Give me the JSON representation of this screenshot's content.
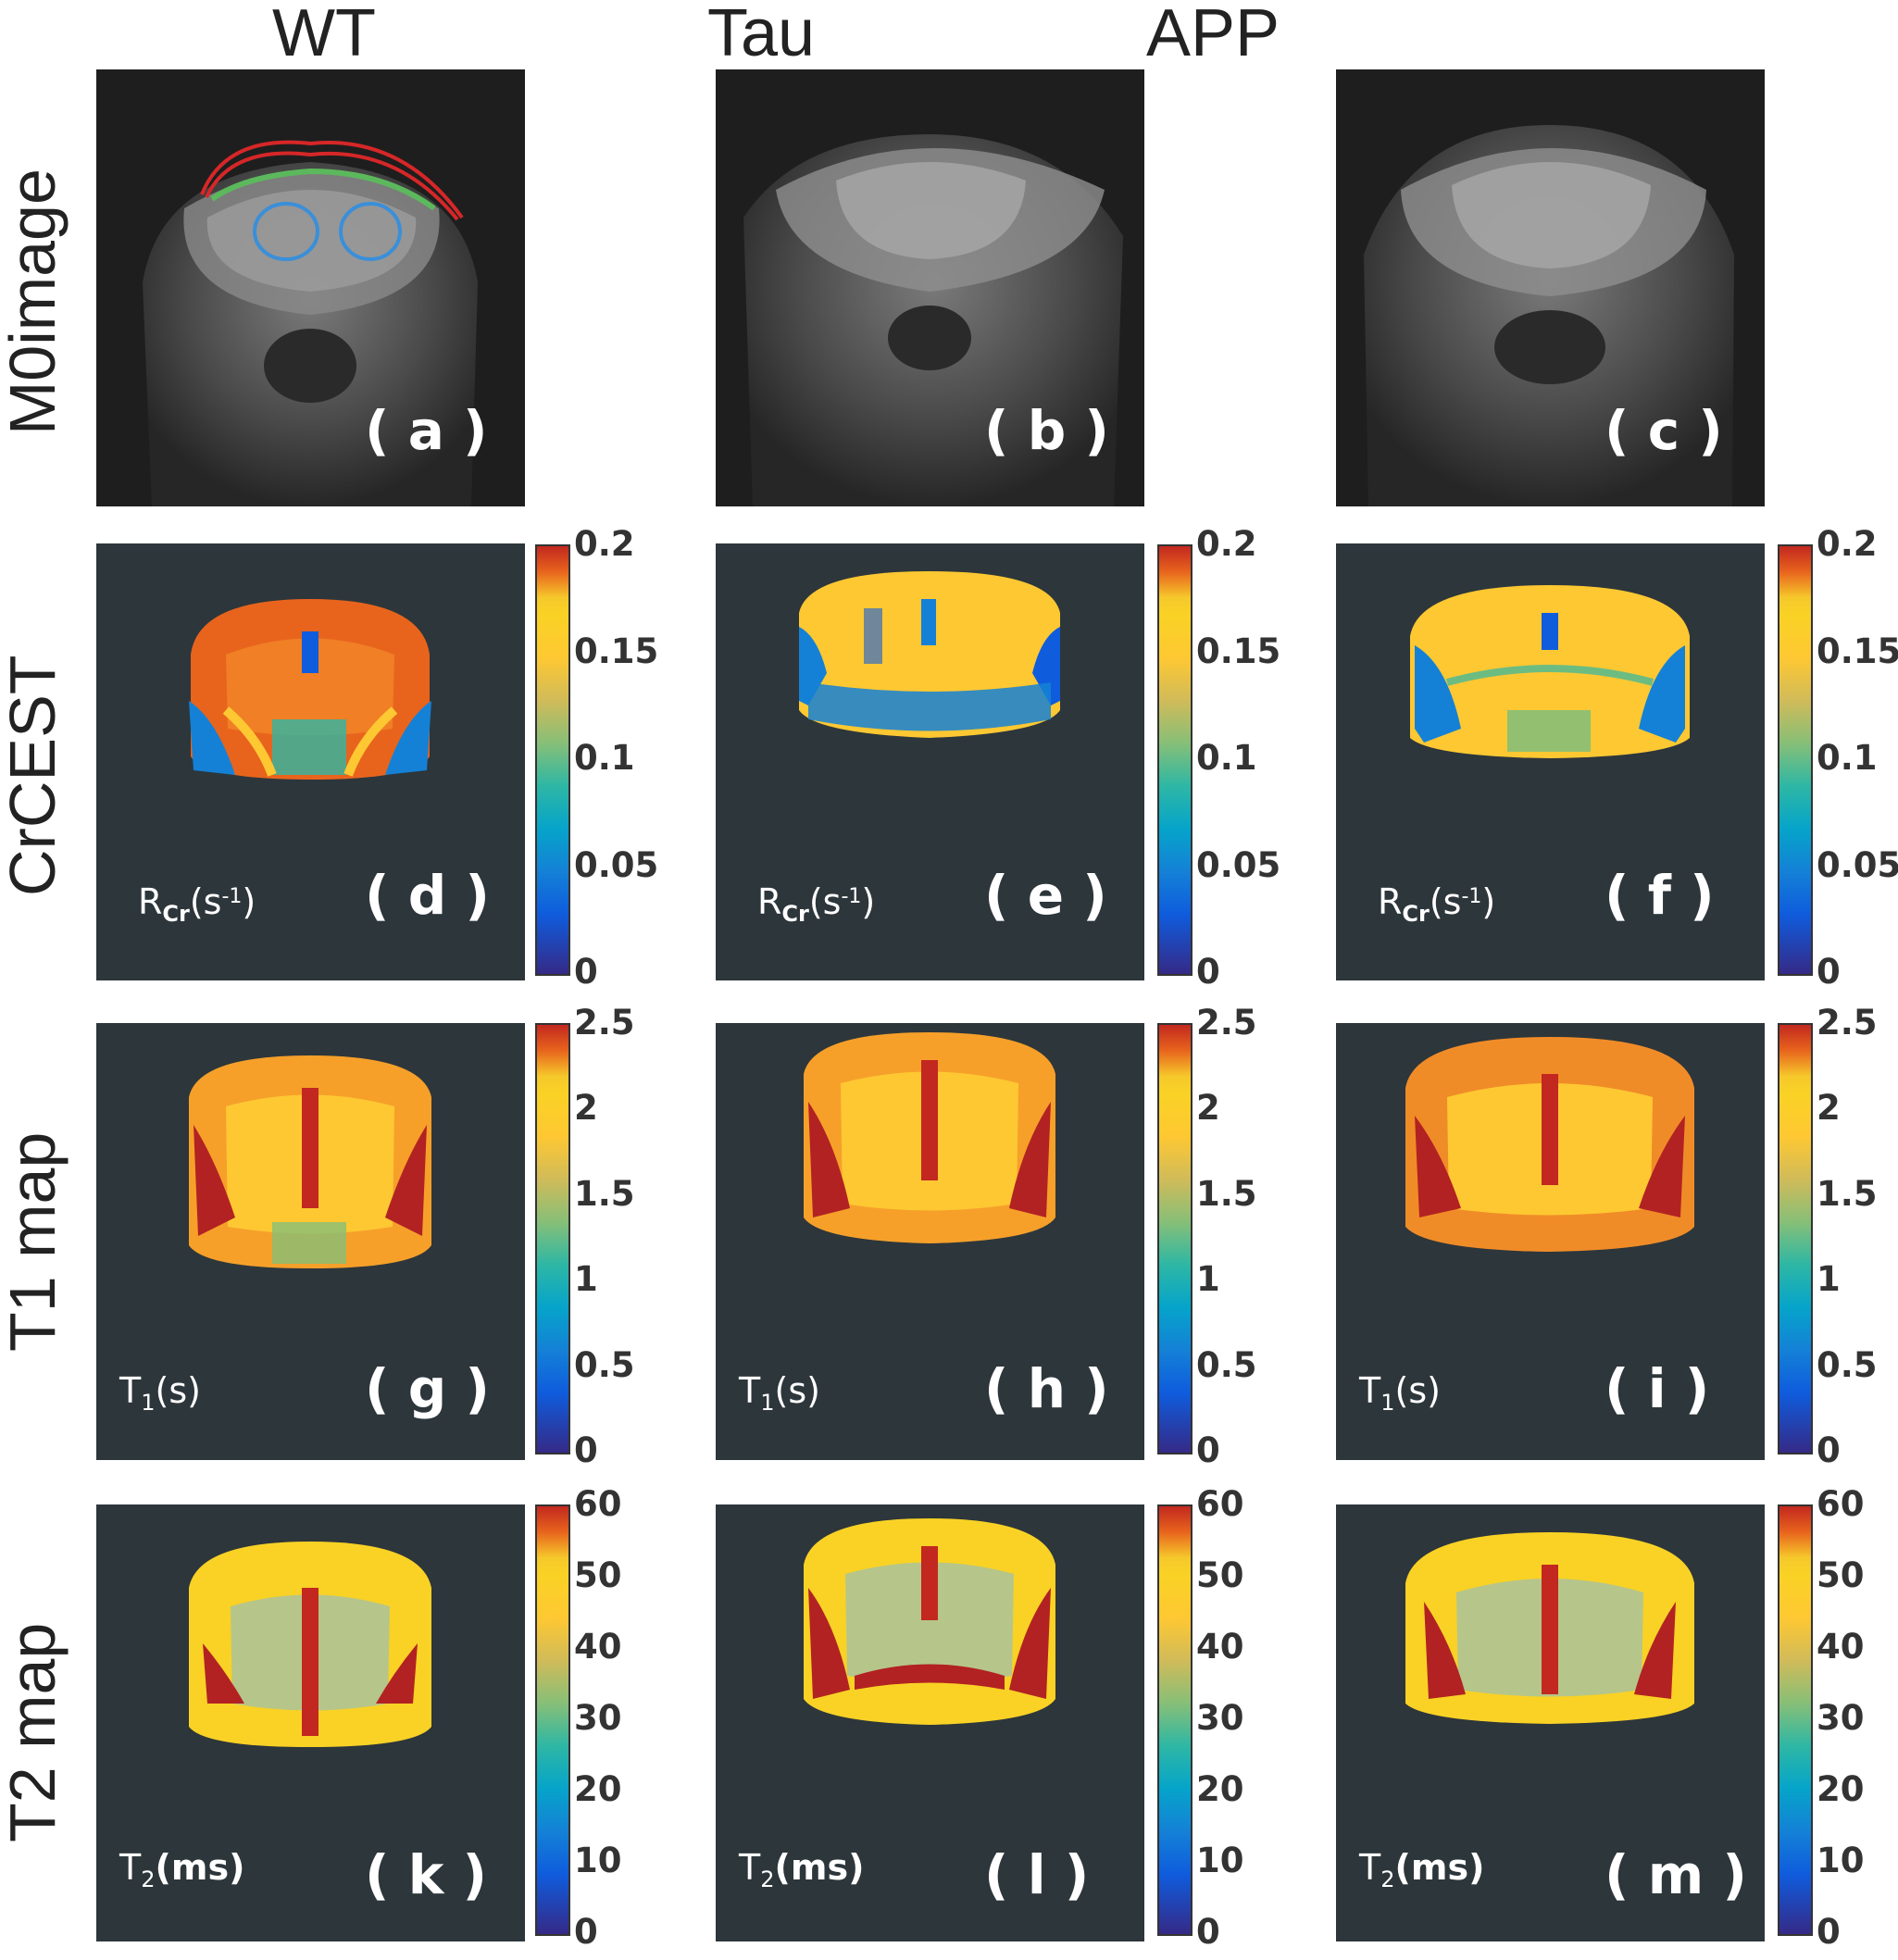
{
  "columns": [
    "WT",
    "Tau",
    "APP"
  ],
  "rows": [
    "M0image",
    "CrCEST",
    "T1 map",
    "T2 map"
  ],
  "panel_labels": {
    "a": "( a )",
    "b": "( b )",
    "c": "( c )",
    "d": "( d )",
    "e": "( e )",
    "f": "( f )",
    "g": "( g )",
    "h": "( h )",
    "i": "( i )",
    "k": "( k )",
    "l": "( l )",
    "m": "( m )"
  },
  "units": {
    "crcest": {
      "base": "R",
      "sub": "Cr",
      "mid": "(s",
      "sup": "-1",
      "end": ")"
    },
    "t1": {
      "base": "T",
      "sub": "1",
      "end": "(s)"
    },
    "t2": {
      "base": "T",
      "sub": "2",
      "end": "(ms)"
    }
  },
  "colorbar_ticks": {
    "crcest": [
      "0.2",
      "0.15",
      "0.1",
      "0.05",
      "0"
    ],
    "t1": [
      "2.5",
      "2",
      "1.5",
      "1",
      "0.5",
      "0"
    ],
    "t2": [
      "60",
      "50",
      "40",
      "30",
      "20",
      "10",
      "0"
    ]
  },
  "colors": {
    "background": "#2d363b",
    "roi_cortex_outer": "#d62728",
    "roi_cortex_inner": "#5cb85c",
    "roi_hippocampus": "#3a8fd9",
    "map_high": "#c2281f",
    "map_mid": "#fec832",
    "map_low": "#0f5cdd"
  }
}
